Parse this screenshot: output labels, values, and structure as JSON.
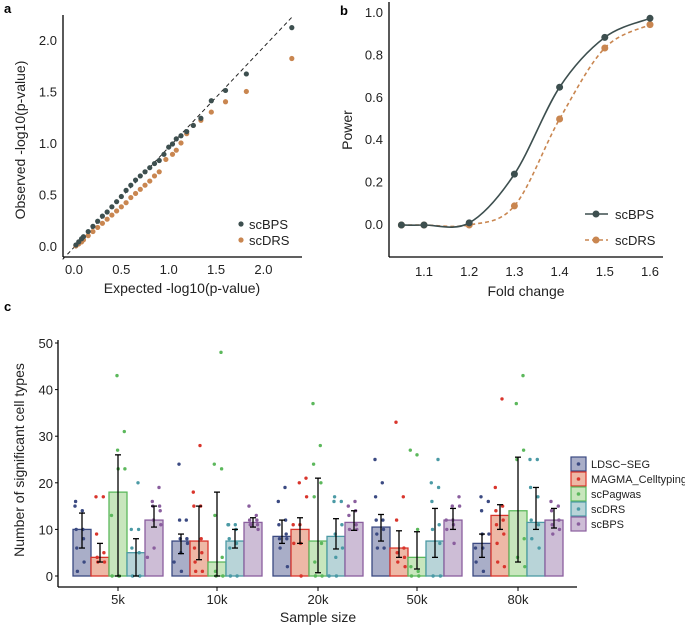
{
  "chart_data": [
    {
      "panel_label": "a",
      "type": "scatter",
      "xlabel": "Expected -log10(p-value)",
      "ylabel": "Observed -log10(p-value)",
      "xlim": [
        0,
        2.3
      ],
      "ylim": [
        0,
        2.25
      ],
      "xticks": [
        "0.0",
        "0.5",
        "1.0",
        "1.5",
        "2.0"
      ],
      "yticks": [
        "0.0",
        "0.5",
        "1.0",
        "1.5",
        "2.0"
      ],
      "reference_line": "y = x (dashed)",
      "legend_position": "bottom-right",
      "grid": false,
      "series": [
        {
          "name": "scBPS",
          "color": "#3d4f4f",
          "x": [
            0.02,
            0.05,
            0.08,
            0.1,
            0.15,
            0.2,
            0.25,
            0.3,
            0.35,
            0.4,
            0.45,
            0.5,
            0.55,
            0.6,
            0.65,
            0.7,
            0.75,
            0.8,
            0.85,
            0.9,
            0.95,
            1.0,
            1.04,
            1.08,
            1.13,
            1.19,
            1.26,
            1.34,
            1.45,
            1.6,
            1.82,
            2.3
          ],
          "y": [
            0.02,
            0.05,
            0.08,
            0.1,
            0.15,
            0.2,
            0.25,
            0.3,
            0.34,
            0.39,
            0.44,
            0.49,
            0.55,
            0.6,
            0.65,
            0.69,
            0.73,
            0.77,
            0.81,
            0.84,
            0.9,
            0.97,
            1.0,
            1.05,
            1.08,
            1.12,
            1.18,
            1.25,
            1.42,
            1.52,
            1.68,
            2.13
          ]
        },
        {
          "name": "scDRS",
          "color": "#c98650",
          "x": [
            0.02,
            0.05,
            0.08,
            0.1,
            0.15,
            0.2,
            0.25,
            0.3,
            0.35,
            0.4,
            0.45,
            0.5,
            0.55,
            0.6,
            0.65,
            0.7,
            0.75,
            0.8,
            0.85,
            0.9,
            0.97,
            1.04,
            1.08,
            1.13,
            1.19,
            1.26,
            1.34,
            1.45,
            1.6,
            1.82,
            2.3
          ],
          "y": [
            0.01,
            0.03,
            0.05,
            0.07,
            0.11,
            0.15,
            0.19,
            0.23,
            0.27,
            0.31,
            0.35,
            0.39,
            0.43,
            0.48,
            0.52,
            0.56,
            0.6,
            0.64,
            0.69,
            0.73,
            0.85,
            0.9,
            0.94,
            1.01,
            1.1,
            1.18,
            1.23,
            1.31,
            1.41,
            1.51,
            1.83
          ]
        }
      ]
    },
    {
      "panel_label": "b",
      "type": "line",
      "xlabel": "Fold change",
      "ylabel": "Power",
      "xlim": [
        1.0,
        1.65
      ],
      "ylim": [
        -0.15,
        1.05
      ],
      "xticks": [
        "1.1",
        "1.2",
        "1.3",
        "1.4",
        "1.5",
        "1.6"
      ],
      "yticks": [
        "0.0",
        "0.2",
        "0.4",
        "0.6",
        "0.8",
        "1.0"
      ],
      "legend_position": "bottom-right",
      "grid": false,
      "x": [
        1.05,
        1.1,
        1.2,
        1.3,
        1.4,
        1.5,
        1.6
      ],
      "series": [
        {
          "name": "scBPS",
          "color": "#3d4f4f",
          "line": "solid",
          "values": [
            0,
            0,
            0.01,
            0.24,
            0.65,
            0.885,
            0.975
          ]
        },
        {
          "name": "scDRS",
          "color": "#c98650",
          "line": "dashed",
          "values": [
            0,
            0,
            0,
            0.09,
            0.5,
            0.835,
            0.945
          ]
        }
      ]
    },
    {
      "panel_label": "c",
      "type": "bar",
      "xlabel": "Sample size",
      "ylabel": "Number of significant cell types",
      "ylim": [
        0,
        50
      ],
      "yticks": [
        "0",
        "10",
        "20",
        "30",
        "40",
        "50"
      ],
      "categories": [
        "5k",
        "10k",
        "20k",
        "50k",
        "80k"
      ],
      "legend_position": "right",
      "grid": false,
      "series": [
        {
          "name": "LDSC−SEG",
          "fill": "#a9aec8",
          "color": "#3b4a82",
          "values": [
            10,
            7.5,
            8.5,
            10.5,
            7
          ],
          "err": [
            [
              6,
              13.5
            ],
            [
              4.8,
              9
            ],
            [
              7,
              12
            ],
            [
              7.5,
              13.2
            ],
            [
              4,
              9
            ]
          ],
          "points": [
            [
              15,
              14,
              16,
              10,
              10,
              8,
              6,
              3,
              1
            ],
            [
              24,
              12,
              12,
              8,
              8,
              7,
              5,
              3,
              1
            ],
            [
              19,
              16,
              12,
              11,
              9,
              8,
              8,
              6,
              2
            ],
            [
              25,
              20,
              17,
              12,
              12,
              10,
              9,
              6,
              6
            ],
            [
              17,
              16,
              14,
              9,
              9,
              6,
              6,
              3,
              1
            ]
          ]
        },
        {
          "name": "MAGMA_Celltyping",
          "fill": "#eeb8a6",
          "color": "#d9352c",
          "values": [
            4,
            7.5,
            10,
            6,
            13
          ],
          "err": [
            [
              3,
              7
            ],
            [
              3.5,
              15
            ],
            [
              7,
              12.5
            ],
            [
              4,
              9.7
            ],
            [
              10,
              15.3
            ]
          ],
          "points": [
            [
              17,
              17,
              9,
              5,
              4,
              3,
              3
            ],
            [
              28,
              18,
              15,
              15,
              8,
              6,
              5,
              3,
              1,
              1
            ],
            [
              21,
              20,
              17,
              11,
              11,
              7,
              7,
              0
            ],
            [
              33,
              17,
              12,
              6,
              5,
              4,
              3,
              2
            ],
            [
              38,
              19,
              15,
              14,
              12,
              11,
              9,
              7,
              2,
              3
            ]
          ]
        },
        {
          "name": "scPagwas",
          "fill": "#c8e6bd",
          "color": "#5cb85c",
          "values": [
            18,
            3,
            7.5,
            4,
            14
          ],
          "err": [
            [
              0,
              26
            ],
            [
              0,
              18
            ],
            [
              0.7,
              21
            ],
            [
              1.5,
              9.5
            ],
            [
              3,
              25.5
            ]
          ],
          "points": [
            [
              43,
              31,
              27,
              23,
              23,
              13,
              0,
              0,
              0
            ],
            [
              48,
              24,
              23,
              13,
              4,
              1,
              0,
              0
            ],
            [
              37,
              28,
              24,
              20,
              17,
              7,
              3,
              0,
              0
            ],
            [
              26,
              27,
              10,
              2,
              1,
              0,
              0
            ],
            [
              43,
              37,
              27,
              25,
              8,
              4,
              2
            ]
          ]
        },
        {
          "name": "scDRS",
          "fill": "#b8d4d8",
          "color": "#4b9aa5",
          "values": [
            5,
            7.5,
            8.5,
            7.5,
            11.5
          ],
          "err": [
            [
              0,
              8
            ],
            [
              6,
              10
            ],
            [
              5.8,
              12.3
            ],
            [
              4,
              14.5
            ],
            [
              10,
              19
            ]
          ],
          "points": [
            [
              20,
              10,
              10,
              6,
              5,
              0,
              0
            ],
            [
              11,
              11,
              11,
              10,
              8,
              7,
              6,
              0,
              0
            ],
            [
              16,
              16,
              17,
              11,
              9,
              6,
              4,
              0,
              0
            ],
            [
              25,
              20,
              19,
              16,
              11,
              10,
              7,
              0,
              0
            ],
            [
              25,
              25,
              19,
              17,
              12,
              11,
              8,
              6
            ]
          ]
        },
        {
          "name": "scBPS",
          "fill": "#cdbdd6",
          "color": "#8a5e9e",
          "values": [
            12,
            11.5,
            11.5,
            12,
            12
          ],
          "err": [
            [
              10.5,
              15
            ],
            [
              10.5,
              12.5
            ],
            [
              9.8,
              14
            ],
            [
              10,
              14.5
            ],
            [
              10.3,
              14.5
            ]
          ],
          "points": [
            [
              19,
              16,
              15,
              15,
              14,
              12,
              11,
              6,
              4
            ],
            [
              15,
              13,
              12,
              12,
              11,
              11,
              11,
              10
            ],
            [
              16,
              15,
              14,
              13,
              11,
              10,
              10
            ],
            [
              17,
              15,
              15,
              12,
              12,
              11,
              10,
              7
            ],
            [
              16,
              15,
              14,
              12,
              11,
              10,
              9
            ]
          ]
        }
      ]
    }
  ]
}
